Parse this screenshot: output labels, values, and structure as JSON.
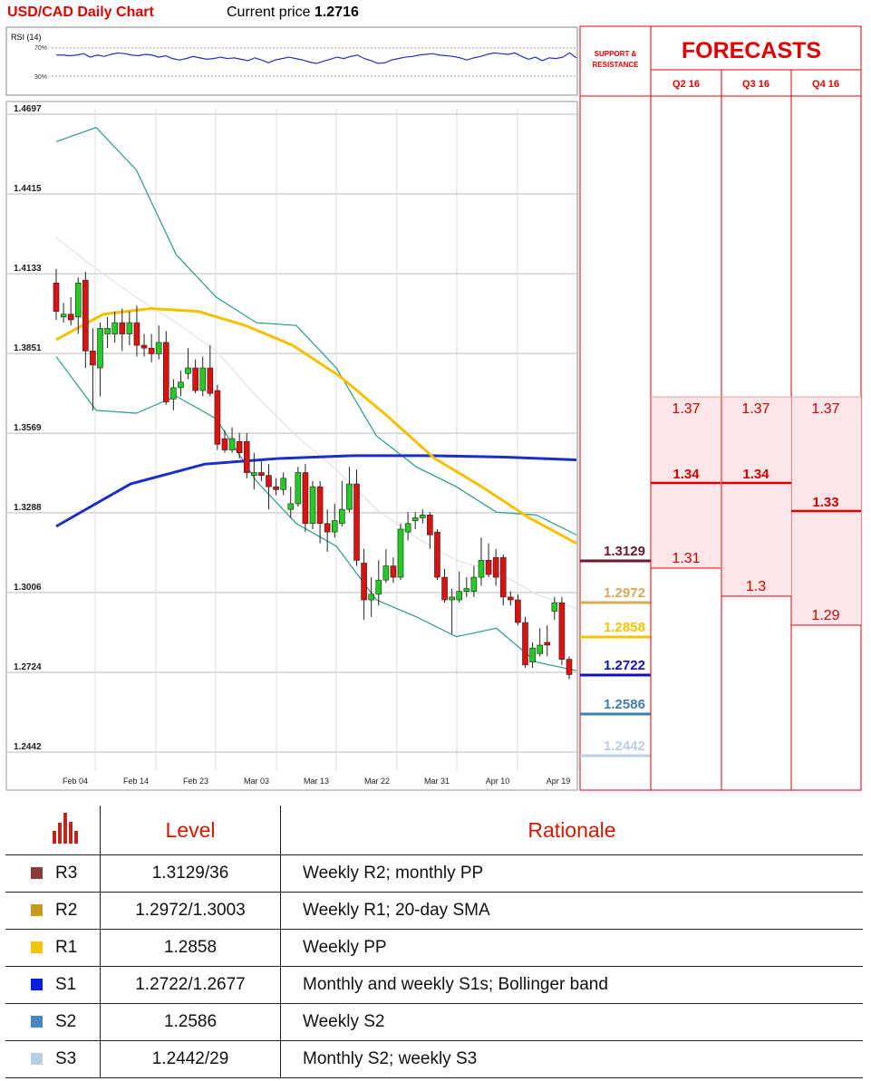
{
  "header": {
    "title": "USD/CAD Daily Chart",
    "price_label": "Current price",
    "price_value": "1.2716"
  },
  "rsi": {
    "label": "RSI (14)",
    "upper": "70%",
    "lower": "30%",
    "values": [
      60,
      60,
      59,
      60,
      62,
      57,
      60,
      58,
      61,
      63,
      62,
      60,
      59,
      61,
      60,
      57,
      59,
      55,
      53,
      55,
      58,
      56,
      54,
      55,
      57,
      55,
      56,
      54,
      52,
      56,
      53,
      49,
      53,
      55,
      57,
      55,
      53,
      50,
      48,
      51,
      54,
      57,
      55,
      58,
      60,
      55,
      52,
      48,
      49,
      53,
      55,
      57,
      58,
      60,
      61,
      62,
      60,
      59,
      58,
      56,
      53,
      56,
      58,
      61,
      63,
      62,
      61,
      63,
      58,
      54,
      57,
      52,
      56,
      55,
      57,
      63,
      56
    ]
  },
  "chart_data": {
    "type": "candlestick",
    "title": "USD/CAD Daily Chart",
    "y_ticks": [
      "1.4697",
      "1.4415",
      "1.4133",
      "1.3851",
      "1.3569",
      "1.3288",
      "1.3006",
      "1.2724",
      "1.2442"
    ],
    "ylim": [
      1.2442,
      1.4697
    ],
    "x_ticks": [
      "Feb 04",
      "Feb 14",
      "Feb 23",
      "Mar 03",
      "Mar 13",
      "Mar 22",
      "Mar 31",
      "Apr 10",
      "Apr 19"
    ],
    "candles": [
      [
        1.41,
        1.4,
        1.415,
        1.397
      ],
      [
        1.398,
        1.399,
        1.403,
        1.396
      ],
      [
        1.399,
        1.397,
        1.405,
        1.395
      ],
      [
        1.398,
        1.41,
        1.412,
        1.392
      ],
      [
        1.411,
        1.386,
        1.414,
        1.38
      ],
      [
        1.386,
        1.381,
        1.394,
        1.365
      ],
      [
        1.38,
        1.394,
        1.396,
        1.37
      ],
      [
        1.392,
        1.394,
        1.398,
        1.387
      ],
      [
        1.392,
        1.396,
        1.4,
        1.389
      ],
      [
        1.396,
        1.392,
        1.401,
        1.386
      ],
      [
        1.392,
        1.396,
        1.4,
        1.388
      ],
      [
        1.396,
        1.388,
        1.402,
        1.384
      ],
      [
        1.388,
        1.387,
        1.392,
        1.384
      ],
      [
        1.387,
        1.385,
        1.392,
        1.382
      ],
      [
        1.385,
        1.389,
        1.395,
        1.383
      ],
      [
        1.389,
        1.368,
        1.393,
        1.367
      ],
      [
        1.369,
        1.373,
        1.376,
        1.365
      ],
      [
        1.373,
        1.375,
        1.379,
        1.37
      ],
      [
        1.378,
        1.38,
        1.387,
        1.376
      ],
      [
        1.38,
        1.372,
        1.383,
        1.371
      ],
      [
        1.372,
        1.38,
        1.384,
        1.37
      ],
      [
        1.38,
        1.371,
        1.388,
        1.37
      ],
      [
        1.372,
        1.353,
        1.374,
        1.351
      ],
      [
        1.355,
        1.351,
        1.358,
        1.35
      ],
      [
        1.351,
        1.355,
        1.359,
        1.35
      ],
      [
        1.354,
        1.35,
        1.357,
        1.348
      ],
      [
        1.354,
        1.343,
        1.357,
        1.341
      ],
      [
        1.342,
        1.343,
        1.35,
        1.337
      ],
      [
        1.343,
        1.342,
        1.347,
        1.34
      ],
      [
        1.342,
        1.338,
        1.346,
        1.33
      ],
      [
        1.338,
        1.337,
        1.341,
        1.335
      ],
      [
        1.337,
        1.341,
        1.343,
        1.335
      ],
      [
        1.33,
        1.332,
        1.338,
        1.327
      ],
      [
        1.332,
        1.343,
        1.345,
        1.331
      ],
      [
        1.343,
        1.325,
        1.346,
        1.322
      ],
      [
        1.325,
        1.338,
        1.34,
        1.323
      ],
      [
        1.338,
        1.325,
        1.34,
        1.318
      ],
      [
        1.325,
        1.322,
        1.33,
        1.315
      ],
      [
        1.322,
        1.326,
        1.332,
        1.32
      ],
      [
        1.325,
        1.33,
        1.34,
        1.324
      ],
      [
        1.33,
        1.339,
        1.345,
        1.329
      ],
      [
        1.339,
        1.312,
        1.344,
        1.31
      ],
      [
        1.311,
        1.298,
        1.316,
        1.291
      ],
      [
        1.298,
        1.3,
        1.306,
        1.292
      ],
      [
        1.3,
        1.305,
        1.312,
        1.296
      ],
      [
        1.305,
        1.31,
        1.316,
        1.304
      ],
      [
        1.31,
        1.306,
        1.313,
        1.304
      ],
      [
        1.306,
        1.323,
        1.325,
        1.305
      ],
      [
        1.322,
        1.325,
        1.329,
        1.319
      ],
      [
        1.326,
        1.327,
        1.329,
        1.323
      ],
      [
        1.327,
        1.328,
        1.33,
        1.325
      ],
      [
        1.328,
        1.321,
        1.329,
        1.316
      ],
      [
        1.322,
        1.306,
        1.323,
        1.305
      ],
      [
        1.306,
        1.298,
        1.309,
        1.297
      ],
      [
        1.298,
        1.299,
        1.302,
        1.286
      ],
      [
        1.298,
        1.301,
        1.308,
        1.297
      ],
      [
        1.301,
        1.302,
        1.306,
        1.299
      ],
      [
        1.301,
        1.306,
        1.31,
        1.299
      ],
      [
        1.306,
        1.312,
        1.32,
        1.303
      ],
      [
        1.312,
        1.307,
        1.318,
        1.306
      ],
      [
        1.313,
        1.306,
        1.316,
        1.303
      ],
      [
        1.313,
        1.299,
        1.314,
        1.296
      ],
      [
        1.299,
        1.298,
        1.301,
        1.296
      ],
      [
        1.298,
        1.29,
        1.3,
        1.289
      ],
      [
        1.29,
        1.275,
        1.292,
        1.274
      ],
      [
        1.276,
        1.281,
        1.283,
        1.274
      ],
      [
        1.279,
        1.282,
        1.288,
        1.278
      ],
      [
        1.283,
        1.282,
        1.289,
        1.278
      ],
      [
        1.294,
        1.297,
        1.299,
        1.291
      ],
      [
        1.297,
        1.277,
        1.299,
        1.275
      ],
      [
        1.277,
        1.2716,
        1.278,
        1.27
      ]
    ],
    "sma200": [
      1.324,
      1.339,
      1.346,
      1.348,
      1.349,
      1.349,
      1.3485,
      1.3475
    ],
    "sma50": [
      1.39,
      1.399,
      1.401,
      1.4,
      1.395,
      1.388,
      1.377,
      1.363,
      1.348,
      1.338,
      1.327,
      1.318
    ],
    "bb_upper": [
      1.46,
      1.465,
      1.45,
      1.42,
      1.405,
      1.396,
      1.395,
      1.38,
      1.356,
      1.345,
      1.338,
      1.329,
      1.328,
      1.321
    ],
    "bb_lower": [
      1.384,
      1.365,
      1.364,
      1.37,
      1.362,
      1.34,
      1.325,
      1.317,
      1.298,
      1.292,
      1.285,
      1.288,
      1.276,
      1.273
    ],
    "bb_mid": [
      1.426,
      1.415,
      1.405,
      1.396,
      1.386,
      1.37,
      1.356,
      1.344,
      1.33,
      1.32,
      1.312,
      1.308,
      1.3,
      1.295
    ]
  },
  "sr": {
    "header": "SUPPORT & RESISTANCE",
    "levels": [
      {
        "label": "1.3129",
        "color": "#6b1a2e",
        "value": 1.3129
      },
      {
        "label": "1.2972",
        "color": "#d4aa5a",
        "value": 1.2972
      },
      {
        "label": "1.2858",
        "color": "#f5c400",
        "value": 1.2858
      },
      {
        "label": "1.2722",
        "color": "#1010c0",
        "value": 1.2722
      },
      {
        "label": "1.2586",
        "color": "#3f7fae",
        "value": 1.2586
      },
      {
        "label": "1.2442",
        "color": "#b8d0e0",
        "value": 1.2442
      }
    ]
  },
  "forecasts": {
    "title": "FORECASTS",
    "quarters": [
      "Q2 16",
      "Q3 16",
      "Q4 16"
    ],
    "high": [
      "1.37",
      "1.37",
      "1.37"
    ],
    "mid": [
      "1.34",
      "1.34",
      "1.33"
    ],
    "low": [
      "1.31",
      "1.3",
      "1.29"
    ]
  },
  "table": {
    "headers": {
      "level": "Level",
      "rationale": "Rationale"
    },
    "rows": [
      {
        "name": "R3",
        "level": "1.3129/36",
        "rationale": "Weekly R2; monthly PP",
        "color": "#8b3a3a"
      },
      {
        "name": "R2",
        "level": "1.2972/1.3003",
        "rationale": "Weekly R1; 20-day SMA",
        "color": "#c89a1a"
      },
      {
        "name": "R1",
        "level": "1.2858",
        "rationale": "Weekly PP",
        "color": "#f5c400"
      },
      {
        "name": "S1",
        "level": "1.2722/1.2677",
        "rationale": "Monthly and weekly S1s; Bollinger band",
        "color": "#0a1ee0"
      },
      {
        "name": "S2",
        "level": "1.2586",
        "rationale": "Weekly S2",
        "color": "#4a86c0"
      },
      {
        "name": "S3",
        "level": "1.2442/29",
        "rationale": "Monthly S2; weekly S3",
        "color": "#b8cce4"
      }
    ]
  }
}
